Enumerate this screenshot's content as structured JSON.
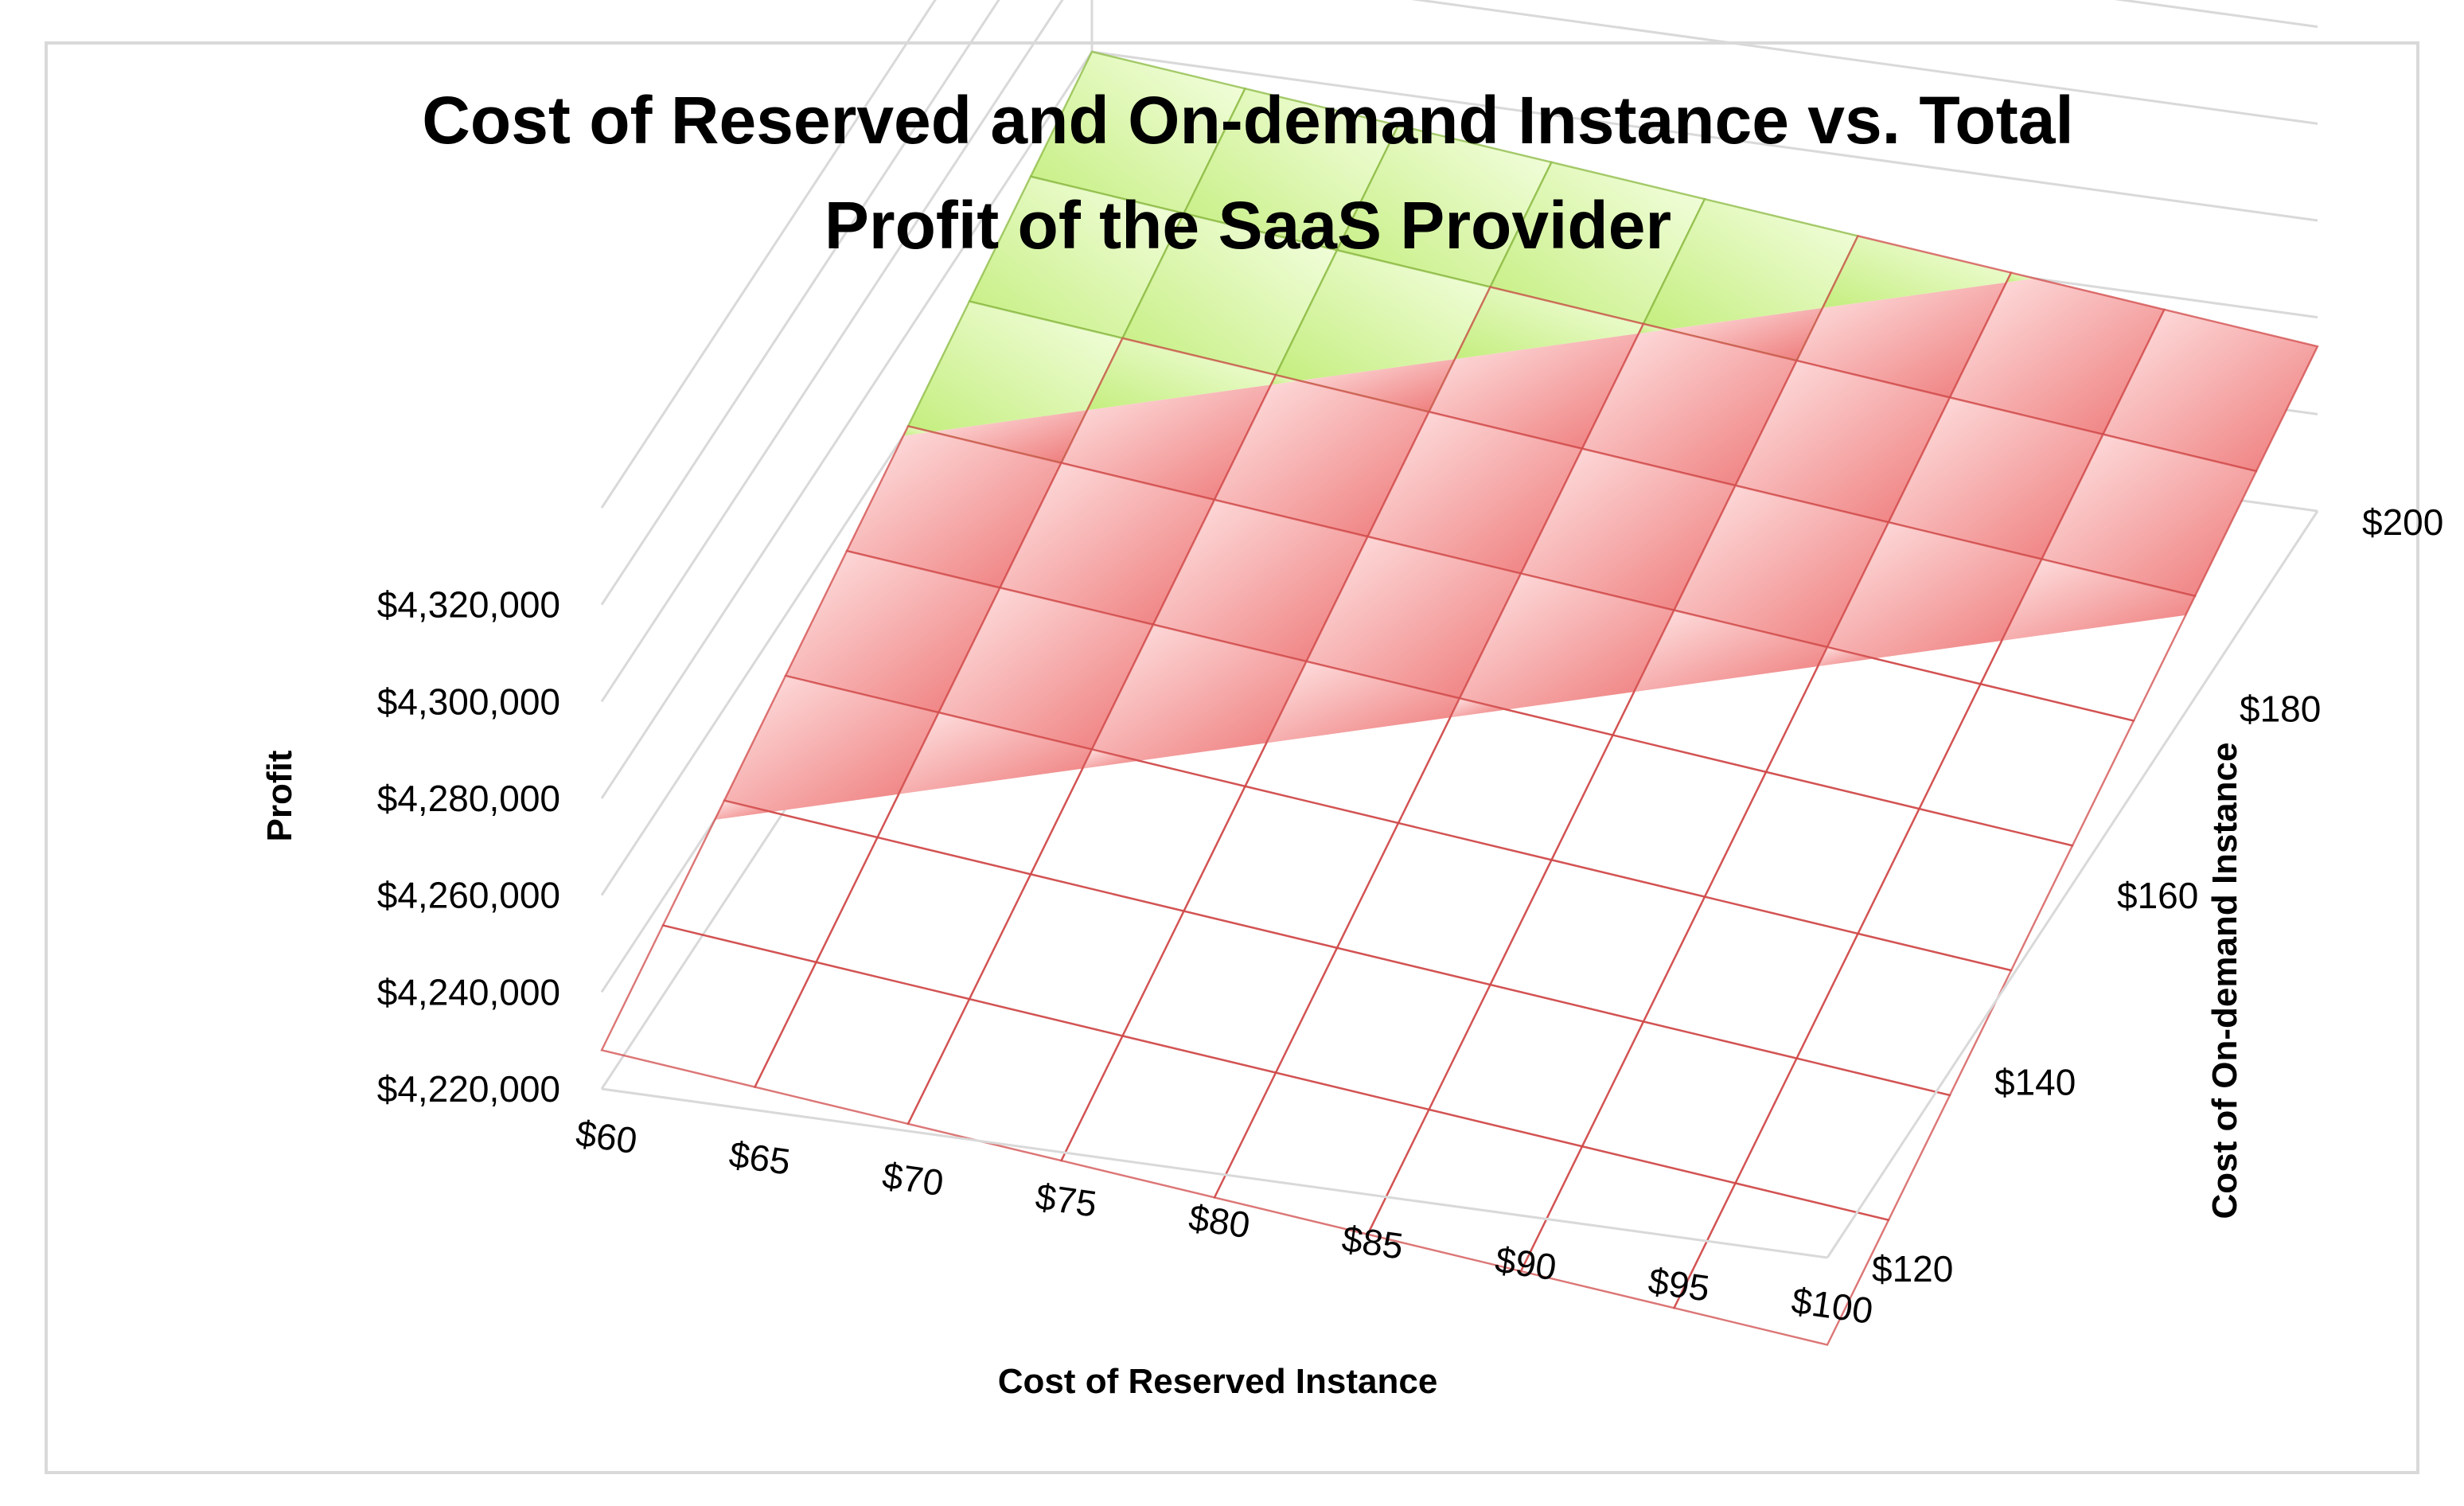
{
  "chart_data": {
    "type": "surface",
    "title": "Cost of Reserved and On-demand Instance vs. Total Profit of the SaaS Provider",
    "title_lines": [
      "Cost of Reserved and On-demand Instance vs. Total",
      "Profit of the SaaS Provider"
    ],
    "xlabel": "Cost of Reserved Instance",
    "ylabel": "Cost of On-demand Instance",
    "zlabel": "Profit",
    "x_ticks": [
      "$60",
      "$65",
      "$70",
      "$75",
      "$80",
      "$85",
      "$90",
      "$95",
      "$100"
    ],
    "y_ticks": [
      "$120",
      "$140",
      "$160",
      "$180",
      "$200"
    ],
    "z_ticks": [
      "$4,220,000",
      "$4,240,000",
      "$4,260,000",
      "$4,280,000",
      "$4,300,000",
      "$4,320,000"
    ],
    "x_values": [
      60,
      65,
      70,
      75,
      80,
      85,
      90,
      95,
      100
    ],
    "y_values": [
      120,
      130,
      140,
      150,
      160,
      170,
      180,
      190,
      200
    ],
    "zlim": [
      4220000,
      4340000
    ],
    "surface": {
      "base_profit": 4228000,
      "per_reserved_dollar": -650,
      "per_ondemand_dollar": 650
    },
    "bands": [
      {
        "range": "$4,240,000-$4,260,000",
        "color": "#f08080"
      },
      {
        "range": "$4,260,000-$4,280,000",
        "color": "#c2ef7a"
      },
      {
        "range": "$4,280,000-$4,300,000",
        "color": "#c6b4e6"
      },
      {
        "range": "$4,300,000-$4,320,000",
        "color": "#8ad8ee"
      }
    ],
    "grid": true,
    "legend": "none"
  }
}
